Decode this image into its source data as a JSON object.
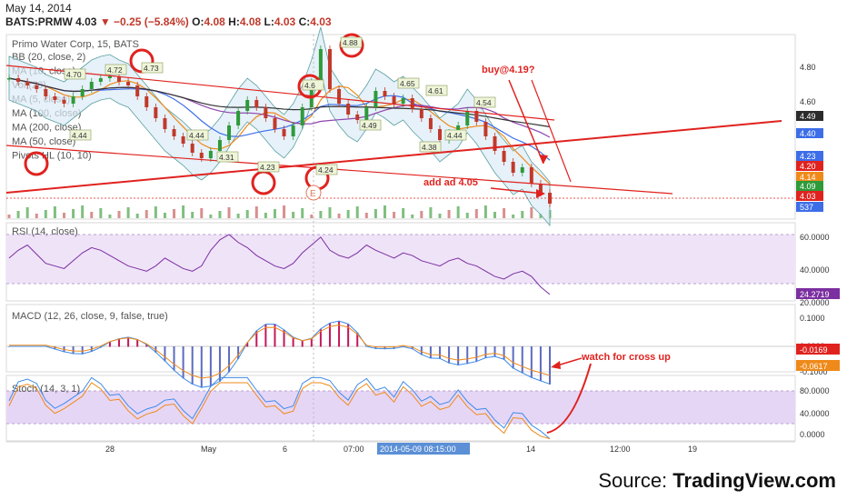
{
  "header": {
    "date": "May 14, 2014",
    "symbol": "BATS:PRMW",
    "last": "4.03",
    "change": "−0.25 (−5.84%)",
    "open_label": "O:",
    "open": "4.08",
    "high_label": "H:",
    "high": "4.08",
    "low_label": "L:",
    "low": "4.03",
    "close_label": "C:",
    "close": "4.03"
  },
  "price_pane": {
    "title": "Primo Water Corp, 15, BATS",
    "indicators": [
      "BB (20, close, 2)",
      "MA (10, close)",
      "Vol (20)",
      "MA (5, close)",
      "MA (100, close)",
      "MA (200, close)",
      "MA (50, close)",
      "Pivots HL (10, 10)"
    ],
    "axis_ticks": [
      "4.80",
      "4.60"
    ],
    "price_tags": [
      {
        "text": "4.49",
        "color": "#2b2b2b"
      },
      {
        "text": "4.40",
        "color": "#3d6ee8"
      },
      {
        "text": "4.23",
        "color": "#3d6ee8"
      },
      {
        "text": "4.20",
        "color": "#e0221f"
      },
      {
        "text": "4.14",
        "color": "#ef8a1a"
      },
      {
        "text": "4.09",
        "color": "#2e9a3a"
      },
      {
        "text": "4.03",
        "color": "#e0221f"
      },
      {
        "text": "537",
        "color": "#3d6ee8"
      }
    ],
    "pivot_labels": [
      "4.70",
      "4.44",
      "4.72",
      "4.73",
      "4.44",
      "4.31",
      "4.23",
      "4.6",
      "4.24",
      "4.88",
      "4.49",
      "4.65",
      "4.61",
      "4.54",
      "4.38",
      "4.44"
    ],
    "event_marker": "E",
    "annotations": [
      "buy@4.19?",
      "add ad 4.05"
    ]
  },
  "rsi_pane": {
    "title": "RSI (14, close)",
    "axis_ticks": [
      "60.0000",
      "40.0000",
      "20.0000"
    ],
    "last_tag": "24.2719"
  },
  "macd_pane": {
    "title": "MACD (12, 26, close, 9, false, true)",
    "axis_ticks": [
      "0.1000",
      "0.0000",
      "-0.1000"
    ],
    "last_tags": [
      {
        "text": "-0.0169",
        "color": "#e0221f"
      },
      {
        "text": "-0.0617",
        "color": "#ef8a1a"
      }
    ],
    "annotation": "watch for cross up"
  },
  "stoch_pane": {
    "title": "Stoch (14, 3, 1)",
    "axis_ticks": [
      "80.0000",
      "40.0000",
      "0.0000"
    ]
  },
  "time_axis": {
    "labels": [
      "28",
      "May",
      "6",
      "07:00",
      "14",
      "12:00",
      "19"
    ],
    "cursor_label": "2014-05-09 08:15:00"
  },
  "source": {
    "prefix": "Source: ",
    "brand": "TradingView.com"
  },
  "colors": {
    "up": "#2e9a3a",
    "down": "#c0392b",
    "rsi": "#7b2fa0",
    "band": "#e8d9f5",
    "annot": "#e0221f"
  },
  "chart_data": {
    "type": "line",
    "title": "Primo Water Corp, 15, BATS",
    "price_series": {
      "name": "PRMW",
      "values": [
        4.72,
        4.7,
        4.68,
        4.66,
        4.62,
        4.6,
        4.58,
        4.62,
        4.66,
        4.7,
        4.72,
        4.73,
        4.7,
        4.68,
        4.62,
        4.56,
        4.5,
        4.44,
        4.4,
        4.36,
        4.31,
        4.28,
        4.32,
        4.38,
        4.46,
        4.54,
        4.6,
        4.56,
        4.5,
        4.44,
        4.4,
        4.46,
        4.56,
        4.7,
        4.88,
        4.66,
        4.58,
        4.52,
        4.49,
        4.56,
        4.65,
        4.62,
        4.58,
        4.61,
        4.55,
        4.5,
        4.44,
        4.38,
        4.42,
        4.46,
        4.54,
        4.48,
        4.4,
        4.32,
        4.26,
        4.2,
        4.23,
        4.14,
        4.09,
        4.03
      ]
    },
    "rsi_values": [
      52,
      58,
      62,
      55,
      48,
      46,
      44,
      50,
      56,
      60,
      58,
      54,
      50,
      46,
      44,
      42,
      46,
      52,
      48,
      44,
      42,
      46,
      58,
      66,
      70,
      64,
      60,
      54,
      50,
      46,
      44,
      48,
      56,
      62,
      68,
      58,
      54,
      52,
      56,
      62,
      58,
      55,
      52,
      56,
      54,
      50,
      48,
      46,
      50,
      52,
      48,
      46,
      42,
      38,
      36,
      40,
      42,
      38,
      30,
      24.27
    ],
    "macd": {
      "macd_last": -0.0169,
      "signal_last": -0.0617
    },
    "rsi_ylim": [
      20,
      70
    ],
    "macd_ylim": [
      -0.12,
      0.12
    ],
    "stoch_ylim": [
      0,
      100
    ],
    "price_ylim": [
      3.95,
      4.95
    ]
  }
}
